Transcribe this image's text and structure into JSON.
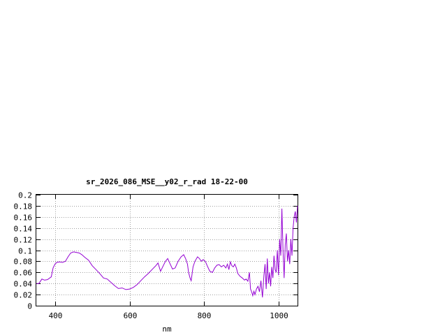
{
  "chart_data": {
    "type": "line",
    "title": "sr_2026_086_MSE__y02_r_rad 18-22-00",
    "xlabel": "nm",
    "ylabel": "",
    "xlim": [
      350,
      1050
    ],
    "ylim": [
      0,
      0.2
    ],
    "xticks": [
      400,
      600,
      800,
      1000
    ],
    "yticks": [
      0,
      0.02,
      0.04,
      0.06,
      0.08,
      0.1,
      0.12,
      0.14,
      0.16,
      0.18,
      0.2
    ],
    "xtick_labels": [
      "400",
      "600",
      "800",
      "1000"
    ],
    "ytick_labels": [
      "0",
      "0.02",
      "0.04",
      "0.06",
      "0.08",
      "0.1",
      "0.12",
      "0.14",
      "0.16",
      "0.18",
      "0.2"
    ],
    "grid": true,
    "series": [
      {
        "color": "#9400d3",
        "x": [
          350,
          357,
          365,
          372,
          380,
          390,
          395,
          400,
          405,
          412,
          420,
          428,
          435,
          442,
          450,
          458,
          465,
          472,
          480,
          490,
          500,
          510,
          520,
          530,
          540,
          550,
          560,
          570,
          580,
          590,
          600,
          610,
          620,
          630,
          640,
          650,
          660,
          670,
          676,
          683,
          690,
          696,
          702,
          708,
          715,
          722,
          730,
          738,
          745,
          750,
          755,
          758,
          762,
          765,
          770,
          775,
          782,
          787,
          792,
          797,
          803,
          808,
          815,
          822,
          828,
          834,
          840,
          846,
          852,
          858,
          862,
          866,
          870,
          874,
          878,
          882,
          886,
          890,
          896,
          902,
          908,
          912,
          917,
          921,
          924,
          927,
          930,
          933,
          936,
          940,
          944,
          948,
          952,
          956,
          960,
          963,
          966,
          969,
          972,
          975,
          978,
          981,
          984,
          987,
          990,
          993,
          996,
          999,
          1002,
          1005,
          1008,
          1011,
          1014,
          1017,
          1020,
          1023,
          1026,
          1029,
          1032,
          1035,
          1038,
          1041,
          1044,
          1047,
          1050
        ],
        "values": [
          0.04,
          0.04,
          0.048,
          0.046,
          0.047,
          0.052,
          0.068,
          0.075,
          0.078,
          0.079,
          0.078,
          0.08,
          0.088,
          0.095,
          0.097,
          0.096,
          0.095,
          0.092,
          0.087,
          0.082,
          0.072,
          0.065,
          0.058,
          0.05,
          0.048,
          0.042,
          0.036,
          0.031,
          0.032,
          0.029,
          0.03,
          0.033,
          0.038,
          0.045,
          0.052,
          0.058,
          0.065,
          0.072,
          0.077,
          0.062,
          0.072,
          0.08,
          0.085,
          0.076,
          0.066,
          0.068,
          0.08,
          0.088,
          0.092,
          0.085,
          0.075,
          0.06,
          0.05,
          0.045,
          0.07,
          0.08,
          0.088,
          0.085,
          0.08,
          0.083,
          0.08,
          0.072,
          0.062,
          0.06,
          0.068,
          0.073,
          0.074,
          0.07,
          0.073,
          0.068,
          0.075,
          0.065,
          0.079,
          0.072,
          0.07,
          0.075,
          0.068,
          0.058,
          0.053,
          0.05,
          0.046,
          0.048,
          0.044,
          0.06,
          0.03,
          0.025,
          0.018,
          0.026,
          0.02,
          0.03,
          0.035,
          0.025,
          0.045,
          0.015,
          0.055,
          0.075,
          0.03,
          0.085,
          0.04,
          0.06,
          0.035,
          0.07,
          0.05,
          0.09,
          0.065,
          0.06,
          0.1,
          0.055,
          0.12,
          0.09,
          0.175,
          0.1,
          0.05,
          0.11,
          0.13,
          0.08,
          0.1,
          0.075,
          0.12,
          0.09,
          0.14,
          0.16,
          0.17,
          0.15,
          0.18
        ]
      }
    ]
  }
}
